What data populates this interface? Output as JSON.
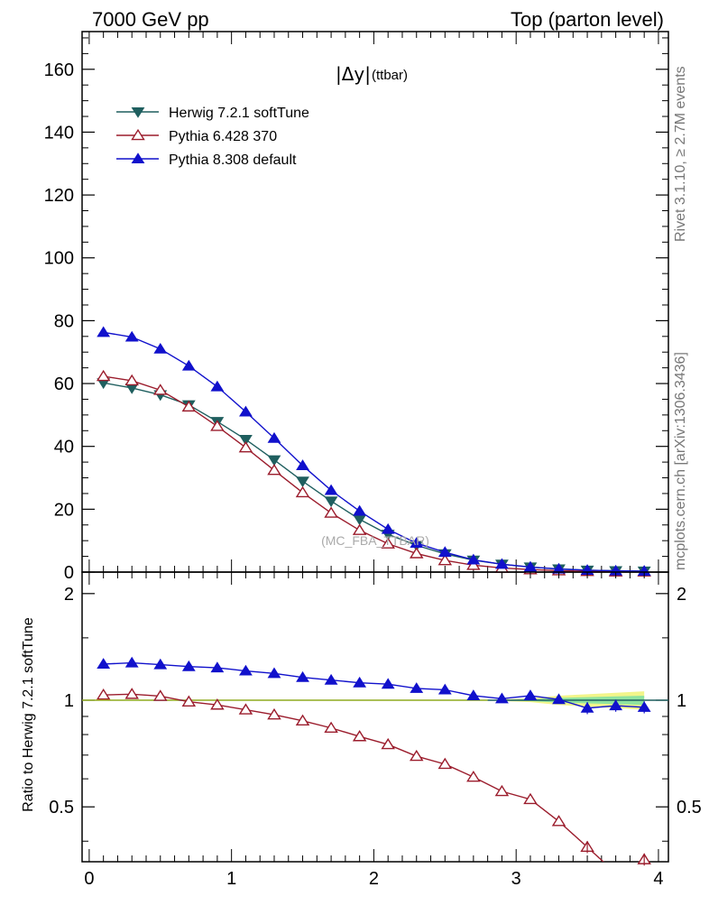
{
  "header": {
    "left": "7000 GeV pp",
    "right": "Top (parton level)"
  },
  "side": {
    "top": "Rivet 3.1.10, ≥ 2.7M events",
    "bottom": "mcplots.cern.ch [arXiv:1306.3436]"
  },
  "plot": {
    "title_main": "|Δy|",
    "title_sub": "(ttbar)",
    "watermark": "(MC_FBA_TTBAR)",
    "ratio_ylabel": "Ratio to Herwig 7.2.1 softTune"
  },
  "colors": {
    "herwig": "#1f5f5f",
    "pythia6": "#9b1c2c",
    "pythia8": "#1111cc",
    "band_outer": "#f2f58a",
    "band_inner": "#8fe3a0"
  },
  "chart_data": [
    {
      "type": "line",
      "panel": "main",
      "ylim": [
        0,
        172
      ],
      "xlim": [
        -0.05,
        4.07
      ],
      "yticks": [
        0,
        20,
        40,
        60,
        80,
        100,
        120,
        140,
        160
      ],
      "x": [
        0.1,
        0.3,
        0.5,
        0.7,
        0.9,
        1.1,
        1.3,
        1.5,
        1.7,
        1.9,
        2.1,
        2.3,
        2.5,
        2.7,
        2.9,
        3.1,
        3.3,
        3.5,
        3.7,
        3.9
      ],
      "series": [
        {
          "name": "Herwig 7.2.1 softTune",
          "marker": "triangle-down-filled",
          "values": [
            60.2,
            58.6,
            56.4,
            53.2,
            47.9,
            42.2,
            35.7,
            28.9,
            22.6,
            16.8,
            12.0,
            8.5,
            5.8,
            3.8,
            2.5,
            1.6,
            1.0,
            0.6,
            0.4,
            0.3
          ]
        },
        {
          "name": "Pythia 6.428 370",
          "marker": "triangle-up-open",
          "values": [
            62.3,
            60.9,
            57.9,
            52.6,
            46.4,
            39.6,
            32.4,
            25.3,
            18.8,
            13.3,
            9.0,
            5.9,
            3.7,
            2.2,
            1.3,
            0.8,
            0.45,
            0.25,
            0.1,
            0.1
          ]
        },
        {
          "name": "Pythia 8.308 default",
          "marker": "triangle-up-filled",
          "values": [
            76.3,
            74.8,
            71.0,
            65.6,
            59.0,
            51.0,
            42.6,
            33.9,
            26.0,
            19.4,
            13.6,
            9.2,
            6.3,
            3.9,
            2.5,
            1.6,
            1.0,
            0.6,
            0.4,
            0.3
          ]
        }
      ]
    },
    {
      "type": "line",
      "panel": "ratio",
      "ylim": [
        0.35,
        2.3
      ],
      "yscale": "log",
      "yticks": [
        0.5,
        1,
        2
      ],
      "ylabel": "Ratio to Herwig 7.2.1 softTune",
      "x": [
        0.1,
        0.3,
        0.5,
        0.7,
        0.9,
        1.1,
        1.3,
        1.5,
        1.7,
        1.9,
        2.1,
        2.3,
        2.5,
        2.7,
        2.9,
        3.1,
        3.3,
        3.5,
        3.7,
        3.9
      ],
      "series": [
        {
          "name": "Herwig 7.2.1 softTune",
          "values": [
            1,
            1,
            1,
            1,
            1,
            1,
            1,
            1,
            1,
            1,
            1,
            1,
            1,
            1,
            1,
            1,
            1,
            1,
            1,
            1
          ]
        },
        {
          "name": "Pythia 6.428 370",
          "values": [
            1.035,
            1.04,
            1.027,
            0.99,
            0.97,
            0.94,
            0.91,
            0.875,
            0.835,
            0.79,
            0.75,
            0.695,
            0.66,
            0.607,
            0.553,
            0.525,
            0.455,
            0.385,
            0.325,
            0.355
          ]
        },
        {
          "name": "Pythia 8.308 default",
          "values": [
            1.265,
            1.275,
            1.26,
            1.245,
            1.235,
            1.21,
            1.19,
            1.16,
            1.14,
            1.12,
            1.11,
            1.08,
            1.07,
            1.03,
            1.01,
            1.03,
            1.005,
            0.95,
            0.965,
            0.955
          ]
        }
      ]
    }
  ],
  "xticks": [
    0,
    1,
    2,
    3,
    4
  ]
}
